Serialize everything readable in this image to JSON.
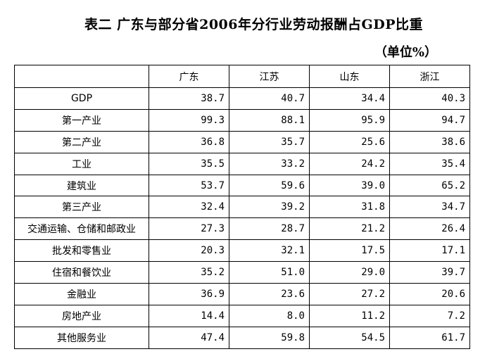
{
  "title": "表二 广东与部分省2006年分行业劳动报酬占GDP比重",
  "unit": "（单位%）",
  "table": {
    "columns": [
      "",
      "广东",
      "江苏",
      "山东",
      "浙江"
    ],
    "rows": [
      {
        "label": "GDP",
        "values": [
          "38.7",
          "40.7",
          "34.4",
          "40.3"
        ]
      },
      {
        "label": "第一产业",
        "values": [
          "99.3",
          "88.1",
          "95.9",
          "94.7"
        ]
      },
      {
        "label": "第二产业",
        "values": [
          "36.8",
          "35.7",
          "25.6",
          "38.6"
        ]
      },
      {
        "label": "工业",
        "values": [
          "35.5",
          "33.2",
          "24.2",
          "35.4"
        ]
      },
      {
        "label": "建筑业",
        "values": [
          "53.7",
          "59.6",
          "39.0",
          "65.2"
        ]
      },
      {
        "label": "第三产业",
        "values": [
          "32.4",
          "39.2",
          "31.8",
          "34.7"
        ]
      },
      {
        "label": "交通运输、仓储和邮政业",
        "values": [
          "27.3",
          "28.7",
          "21.2",
          "26.4"
        ]
      },
      {
        "label": "批发和零售业",
        "values": [
          "20.3",
          "32.1",
          "17.5",
          "17.1"
        ]
      },
      {
        "label": "住宿和餐饮业",
        "values": [
          "35.2",
          "51.0",
          "29.0",
          "39.7"
        ]
      },
      {
        "label": "金融业",
        "values": [
          "36.9",
          "23.6",
          "27.2",
          "20.6"
        ]
      },
      {
        "label": "房地产业",
        "values": [
          "14.4",
          "8.0",
          "11.2",
          "7.2"
        ]
      },
      {
        "label": "其他服务业",
        "values": [
          "47.4",
          "59.8",
          "54.5",
          "61.7"
        ]
      }
    ]
  }
}
